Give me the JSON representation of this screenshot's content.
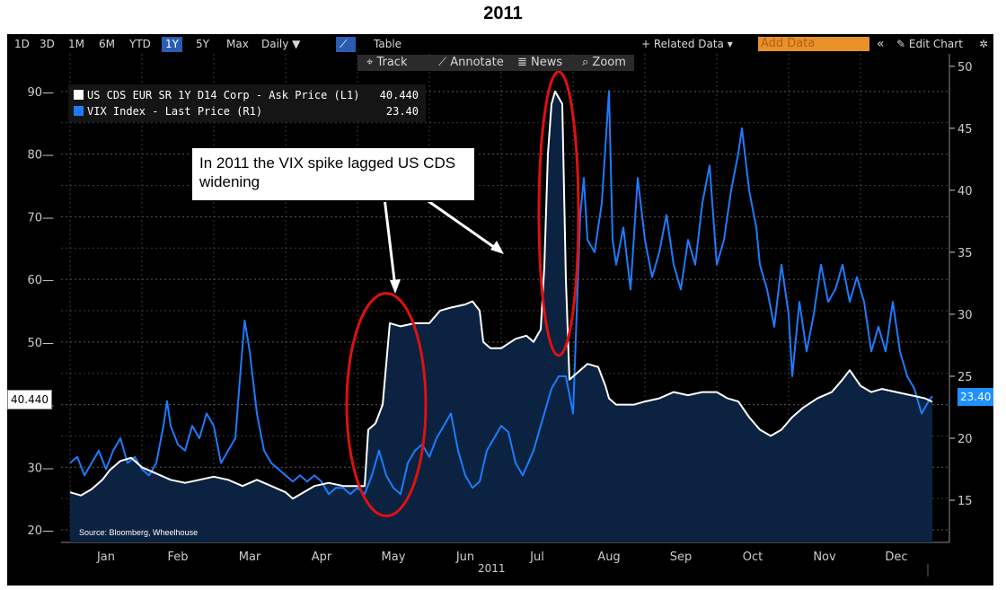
{
  "title": "2011",
  "toolbar": {
    "periods": [
      "1D",
      "3D",
      "1M",
      "6M",
      "YTD",
      "1Y",
      "5Y",
      "Max"
    ],
    "selected_period": "1Y",
    "frequency": "Daily ▼",
    "table_label": "Table",
    "related_data": "+ Related Data ▾",
    "add_data_placeholder": "Add Data",
    "collapse_icon": "«",
    "edit_chart": "✎ Edit Chart",
    "gear_icon": "✲"
  },
  "subtoolbar": {
    "track": "⌖ Track",
    "annotate": "⟋ Annotate",
    "news": "≣ News",
    "zoom": "⌕ Zoom"
  },
  "legend": {
    "series1_label": "US CDS EUR SR 1Y D14 Corp - Ask Price (L1)",
    "series1_value": "40.440",
    "series2_label": "VIX Index - Last Price (R1)",
    "series2_value": "23.40"
  },
  "annotation": "In 2011 the VIX spike lagged US CDS widening",
  "source": "Source: Bloomberg, Wheelhouse",
  "last_tags": {
    "left": "40.440",
    "right": "23.40"
  },
  "year_label": "2011",
  "colors": {
    "cds": "#ffffff",
    "vix": "#1e7bff",
    "fill": "#0b2340",
    "oval": "#e01010"
  },
  "chart_data": {
    "type": "line",
    "title": "2011",
    "x_categories": [
      "Jan",
      "Feb",
      "Mar",
      "Apr",
      "May",
      "Jun",
      "Jul",
      "Aug",
      "Sep",
      "Oct",
      "Nov",
      "Dec"
    ],
    "left_axis": {
      "ticks": [
        "20",
        "30",
        "40",
        "50",
        "60",
        "70",
        "80",
        "90"
      ],
      "ylim": [
        18,
        96
      ]
    },
    "right_axis": {
      "ticks": [
        "15",
        "20",
        "25",
        "30",
        "35",
        "40",
        "45",
        "50"
      ],
      "ylim": [
        11.6,
        51
      ]
    },
    "series": [
      {
        "name": "US CDS EUR SR 1Y D14 Corp - Ask Price (L1)",
        "axis": "left",
        "points": [
          [
            0,
            26
          ],
          [
            0.15,
            25.5
          ],
          [
            0.3,
            26.5
          ],
          [
            0.45,
            28
          ],
          [
            0.55,
            29.5
          ],
          [
            0.7,
            31
          ],
          [
            0.85,
            31.5
          ],
          [
            1.0,
            30
          ],
          [
            1.2,
            29
          ],
          [
            1.4,
            28
          ],
          [
            1.6,
            27.5
          ],
          [
            1.8,
            28
          ],
          [
            2.0,
            28.5
          ],
          [
            2.2,
            28
          ],
          [
            2.4,
            27
          ],
          [
            2.6,
            28
          ],
          [
            2.8,
            27
          ],
          [
            3.0,
            26
          ],
          [
            3.1,
            25
          ],
          [
            3.25,
            26
          ],
          [
            3.4,
            27
          ],
          [
            3.6,
            27.5
          ],
          [
            3.8,
            27
          ],
          [
            4.0,
            27
          ],
          [
            4.1,
            27
          ],
          [
            4.15,
            36
          ],
          [
            4.25,
            37
          ],
          [
            4.35,
            40
          ],
          [
            4.45,
            53
          ],
          [
            4.6,
            52.5
          ],
          [
            4.8,
            53
          ],
          [
            5.0,
            53
          ],
          [
            5.15,
            55
          ],
          [
            5.3,
            55.5
          ],
          [
            5.5,
            56
          ],
          [
            5.6,
            56.5
          ],
          [
            5.7,
            55
          ],
          [
            5.75,
            50
          ],
          [
            5.85,
            49
          ],
          [
            6.0,
            49
          ],
          [
            6.2,
            50.5
          ],
          [
            6.35,
            51
          ],
          [
            6.45,
            50
          ],
          [
            6.55,
            52
          ],
          [
            6.6,
            62
          ],
          [
            6.65,
            80
          ],
          [
            6.7,
            88
          ],
          [
            6.75,
            90
          ],
          [
            6.85,
            88
          ],
          [
            6.9,
            60
          ],
          [
            6.95,
            44
          ],
          [
            7.05,
            45
          ],
          [
            7.2,
            46.5
          ],
          [
            7.35,
            46
          ],
          [
            7.45,
            43
          ],
          [
            7.5,
            41
          ],
          [
            7.6,
            40
          ],
          [
            7.7,
            40
          ],
          [
            7.85,
            40
          ],
          [
            8.0,
            40.5
          ],
          [
            8.2,
            41
          ],
          [
            8.4,
            42
          ],
          [
            8.6,
            41.5
          ],
          [
            8.8,
            42
          ],
          [
            9.0,
            42
          ],
          [
            9.15,
            41
          ],
          [
            9.3,
            40.5
          ],
          [
            9.45,
            38
          ],
          [
            9.6,
            36
          ],
          [
            9.75,
            35
          ],
          [
            9.9,
            36
          ],
          [
            10.05,
            38
          ],
          [
            10.2,
            39.5
          ],
          [
            10.4,
            41
          ],
          [
            10.6,
            42
          ],
          [
            10.75,
            44
          ],
          [
            10.85,
            45.5
          ],
          [
            11.0,
            43
          ],
          [
            11.15,
            42
          ],
          [
            11.3,
            42.5
          ],
          [
            11.5,
            42
          ],
          [
            11.7,
            41.5
          ],
          [
            11.9,
            41
          ],
          [
            12.0,
            40.44
          ]
        ]
      },
      {
        "name": "VIX Index - Last Price (R1)",
        "axis": "right",
        "points": [
          [
            0,
            18
          ],
          [
            0.1,
            18.5
          ],
          [
            0.2,
            17
          ],
          [
            0.3,
            18
          ],
          [
            0.4,
            19
          ],
          [
            0.5,
            17.5
          ],
          [
            0.6,
            19
          ],
          [
            0.7,
            20
          ],
          [
            0.8,
            18
          ],
          [
            0.9,
            18.5
          ],
          [
            1.0,
            17.5
          ],
          [
            1.1,
            17
          ],
          [
            1.2,
            18
          ],
          [
            1.3,
            21
          ],
          [
            1.35,
            23
          ],
          [
            1.4,
            21
          ],
          [
            1.5,
            19.5
          ],
          [
            1.6,
            19
          ],
          [
            1.7,
            21
          ],
          [
            1.8,
            20
          ],
          [
            1.9,
            22
          ],
          [
            2.0,
            21
          ],
          [
            2.1,
            18
          ],
          [
            2.2,
            19
          ],
          [
            2.3,
            20
          ],
          [
            2.38,
            26
          ],
          [
            2.43,
            29.5
          ],
          [
            2.5,
            27
          ],
          [
            2.6,
            22
          ],
          [
            2.7,
            19
          ],
          [
            2.8,
            18
          ],
          [
            2.9,
            17.5
          ],
          [
            3.0,
            17
          ],
          [
            3.1,
            16.5
          ],
          [
            3.2,
            17
          ],
          [
            3.3,
            16.5
          ],
          [
            3.4,
            17
          ],
          [
            3.5,
            16.5
          ],
          [
            3.6,
            15.5
          ],
          [
            3.7,
            16
          ],
          [
            3.8,
            16
          ],
          [
            3.9,
            15.5
          ],
          [
            4.0,
            16
          ],
          [
            4.1,
            15.5
          ],
          [
            4.2,
            17
          ],
          [
            4.3,
            19
          ],
          [
            4.4,
            17
          ],
          [
            4.5,
            16
          ],
          [
            4.6,
            15.5
          ],
          [
            4.7,
            18
          ],
          [
            4.8,
            19
          ],
          [
            4.9,
            19.5
          ],
          [
            5.0,
            18.5
          ],
          [
            5.1,
            20
          ],
          [
            5.2,
            21
          ],
          [
            5.3,
            22
          ],
          [
            5.4,
            19
          ],
          [
            5.5,
            17
          ],
          [
            5.6,
            16
          ],
          [
            5.7,
            16.5
          ],
          [
            5.8,
            19
          ],
          [
            5.9,
            20
          ],
          [
            6.0,
            21
          ],
          [
            6.1,
            20.5
          ],
          [
            6.2,
            18
          ],
          [
            6.3,
            17
          ],
          [
            6.45,
            19
          ],
          [
            6.55,
            21
          ],
          [
            6.6,
            22
          ],
          [
            6.7,
            24
          ],
          [
            6.8,
            25
          ],
          [
            6.9,
            25
          ],
          [
            7.0,
            22
          ],
          [
            7.05,
            30
          ],
          [
            7.1,
            38
          ],
          [
            7.15,
            41
          ],
          [
            7.2,
            36
          ],
          [
            7.3,
            35
          ],
          [
            7.4,
            39
          ],
          [
            7.5,
            48
          ],
          [
            7.55,
            36
          ],
          [
            7.6,
            34
          ],
          [
            7.7,
            37
          ],
          [
            7.8,
            32
          ],
          [
            7.9,
            41
          ],
          [
            8.0,
            36
          ],
          [
            8.1,
            33
          ],
          [
            8.2,
            35
          ],
          [
            8.3,
            38
          ],
          [
            8.4,
            34
          ],
          [
            8.5,
            32
          ],
          [
            8.6,
            36
          ],
          [
            8.7,
            34
          ],
          [
            8.8,
            39
          ],
          [
            8.9,
            42
          ],
          [
            9.0,
            34
          ],
          [
            9.1,
            36
          ],
          [
            9.2,
            40
          ],
          [
            9.3,
            43
          ],
          [
            9.35,
            45
          ],
          [
            9.45,
            40
          ],
          [
            9.55,
            37
          ],
          [
            9.6,
            34
          ],
          [
            9.7,
            32
          ],
          [
            9.8,
            29
          ],
          [
            9.9,
            34
          ],
          [
            10.0,
            30
          ],
          [
            10.05,
            25
          ],
          [
            10.15,
            31
          ],
          [
            10.25,
            27
          ],
          [
            10.35,
            30
          ],
          [
            10.45,
            34
          ],
          [
            10.55,
            31
          ],
          [
            10.65,
            32
          ],
          [
            10.75,
            34
          ],
          [
            10.85,
            31
          ],
          [
            10.95,
            33
          ],
          [
            11.05,
            31
          ],
          [
            11.15,
            27
          ],
          [
            11.25,
            29
          ],
          [
            11.35,
            27
          ],
          [
            11.45,
            31
          ],
          [
            11.55,
            27
          ],
          [
            11.65,
            25
          ],
          [
            11.75,
            24
          ],
          [
            11.85,
            22
          ],
          [
            11.95,
            23
          ],
          [
            12.0,
            23.4
          ]
        ]
      }
    ],
    "annotations": [
      "In 2011 the VIX spike lagged US CDS widening"
    ],
    "source": "Source: Bloomberg, Wheelhouse"
  }
}
